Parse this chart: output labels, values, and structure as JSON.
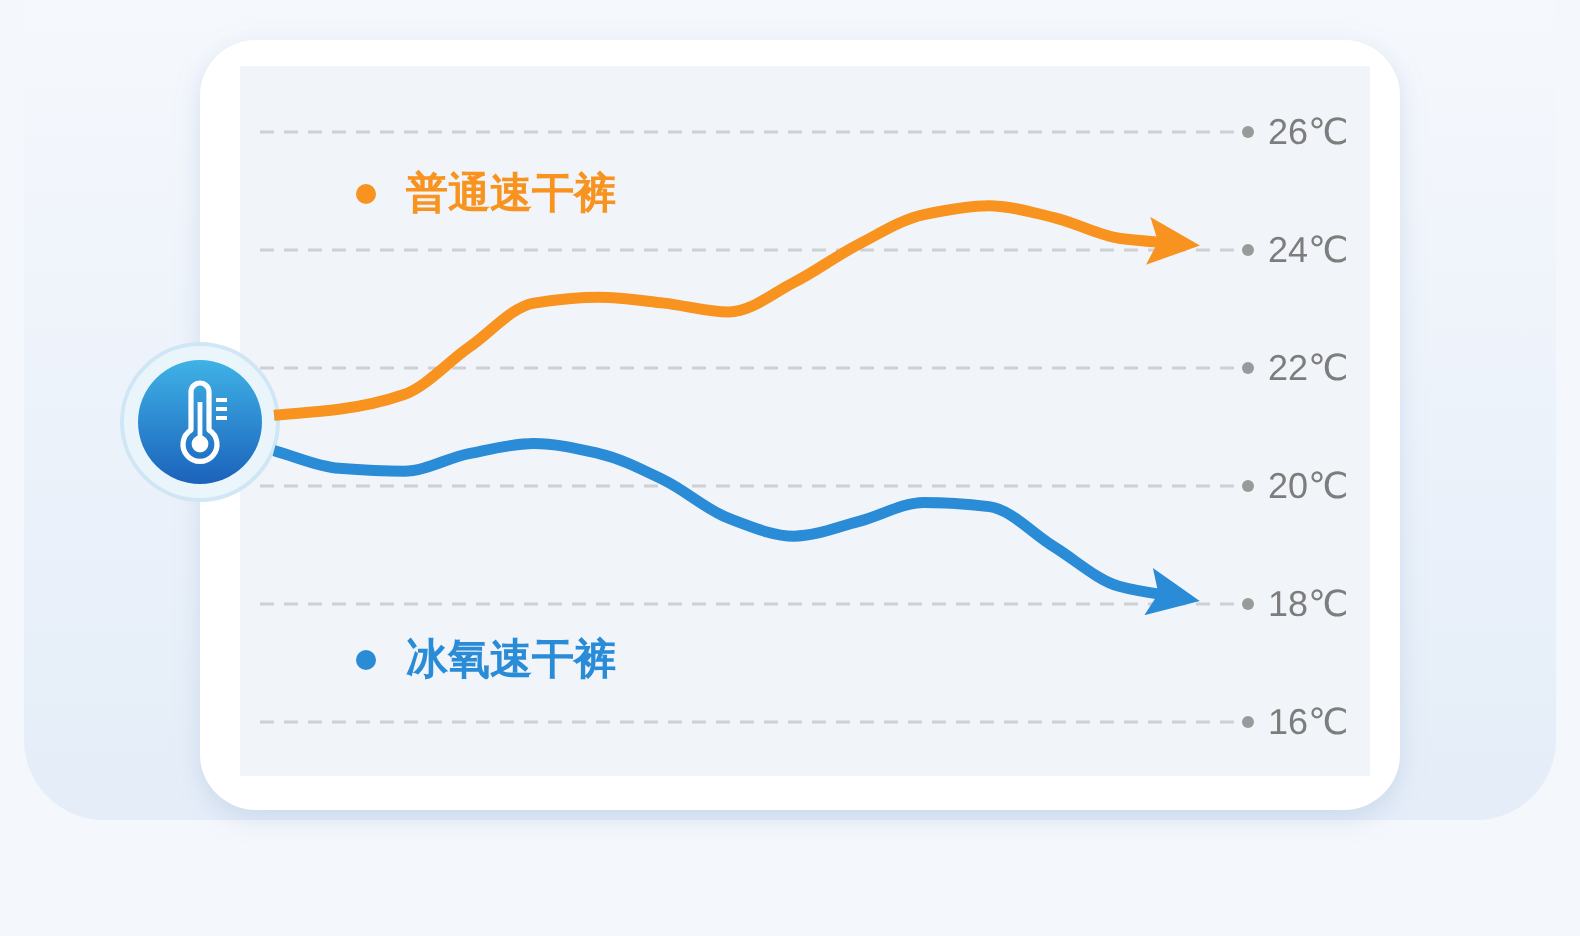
{
  "chart_data": {
    "type": "line",
    "categories": [
      null,
      null,
      null,
      null,
      null,
      null,
      null,
      null,
      null,
      null,
      null,
      null,
      null,
      null,
      null
    ],
    "series": [
      {
        "name": "普通速干裤",
        "color": "#f7931e",
        "values": [
          21.2,
          21.3,
          21.55,
          22.35,
          23.1,
          23.2,
          23.1,
          22.95,
          23.45,
          24.1,
          24.6,
          24.75,
          24.55,
          24.2,
          24.1
        ]
      },
      {
        "name": "冰氧速干裤",
        "color": "#2a8bd6",
        "values": [
          20.6,
          20.3,
          20.25,
          20.55,
          20.72,
          20.55,
          20.1,
          19.45,
          19.15,
          19.4,
          19.72,
          19.65,
          18.97,
          18.3,
          18.1
        ]
      }
    ],
    "ylim": [
      16,
      26
    ],
    "yticks": [
      {
        "value": 16,
        "label": "16℃"
      },
      {
        "value": 18,
        "label": "18℃"
      },
      {
        "value": 20,
        "label": "20℃"
      },
      {
        "value": 22,
        "label": "22℃"
      },
      {
        "value": 24,
        "label": "24℃"
      },
      {
        "value": 26,
        "label": "26℃"
      }
    ],
    "grid": "y",
    "legend": "left"
  }
}
